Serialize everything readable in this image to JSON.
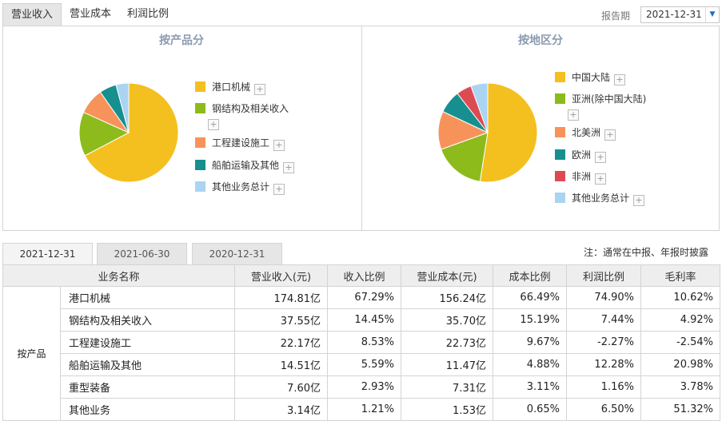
{
  "top_tabs": [
    "营业收入",
    "营业成本",
    "利润比例"
  ],
  "period_label": "报告期",
  "period_value": "2021-12-31",
  "charts": [
    {
      "title": "按产品分",
      "legend": [
        "港口机械",
        "钢结构及相关收入",
        "工程建设施工",
        "船舶运输及其他",
        "其他业务总计"
      ],
      "colors": [
        "#f4c020",
        "#8dbb1c",
        "#f7935a",
        "#178f8f",
        "#aad4f2"
      ],
      "values": [
        67.29,
        14.45,
        8.53,
        5.59,
        4.14
      ]
    },
    {
      "title": "按地区分",
      "legend": [
        "中国大陆",
        "亚洲(除中国大陆)",
        "北美洲",
        "欧洲",
        "非洲",
        "其他业务总计"
      ],
      "colors": [
        "#f4c020",
        "#8dbb1c",
        "#f7935a",
        "#178f8f",
        "#dd4b52",
        "#aad4f2"
      ],
      "values": [
        52.5,
        17.0,
        12.5,
        7.5,
        5.0,
        5.5
      ]
    }
  ],
  "period_tabs": [
    "2021-12-31",
    "2021-06-30",
    "2020-12-31"
  ],
  "note": "注：通常在中报、年报时披露",
  "table": {
    "headers": [
      "业务名称",
      "营业收入(元)",
      "收入比例",
      "营业成本(元)",
      "成本比例",
      "利润比例",
      "毛利率"
    ],
    "group_label": "按产品",
    "rows": [
      [
        "港口机械",
        "174.81亿",
        "67.29%",
        "156.24亿",
        "66.49%",
        "74.90%",
        "10.62%"
      ],
      [
        "钢结构及相关收入",
        "37.55亿",
        "14.45%",
        "35.70亿",
        "15.19%",
        "7.44%",
        "4.92%"
      ],
      [
        "工程建设施工",
        "22.17亿",
        "8.53%",
        "22.73亿",
        "9.67%",
        "-2.27%",
        "-2.54%"
      ],
      [
        "船舶运输及其他",
        "14.51亿",
        "5.59%",
        "11.47亿",
        "4.88%",
        "12.28%",
        "20.98%"
      ],
      [
        "重型装备",
        "7.60亿",
        "2.93%",
        "7.31亿",
        "3.11%",
        "1.16%",
        "3.78%"
      ],
      [
        "其他业务",
        "3.14亿",
        "1.21%",
        "1.53亿",
        "0.65%",
        "6.50%",
        "51.32%"
      ]
    ]
  }
}
